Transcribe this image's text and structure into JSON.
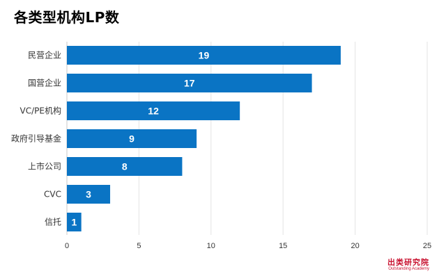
{
  "title": "各类型机构LP数",
  "brand": {
    "name": "出类研究院",
    "subtitle": "Outstanding Academy",
    "color": "#c8102e"
  },
  "chart_data": {
    "type": "bar",
    "orientation": "horizontal",
    "title": "各类型机构LP数",
    "categories": [
      "民营企业",
      "国营企业",
      "VC/PE机构",
      "政府引导基金",
      "上市公司",
      "CVC",
      "信托"
    ],
    "values": [
      19,
      17,
      12,
      9,
      8,
      3,
      1
    ],
    "xlim": [
      0,
      25
    ],
    "xticks": [
      0,
      5,
      10,
      15,
      20,
      25
    ],
    "grid": true,
    "data_labels": true,
    "bar_color": "#0a74c4",
    "label_color": "#ffffff",
    "grid_color": "#e3e3e3"
  }
}
